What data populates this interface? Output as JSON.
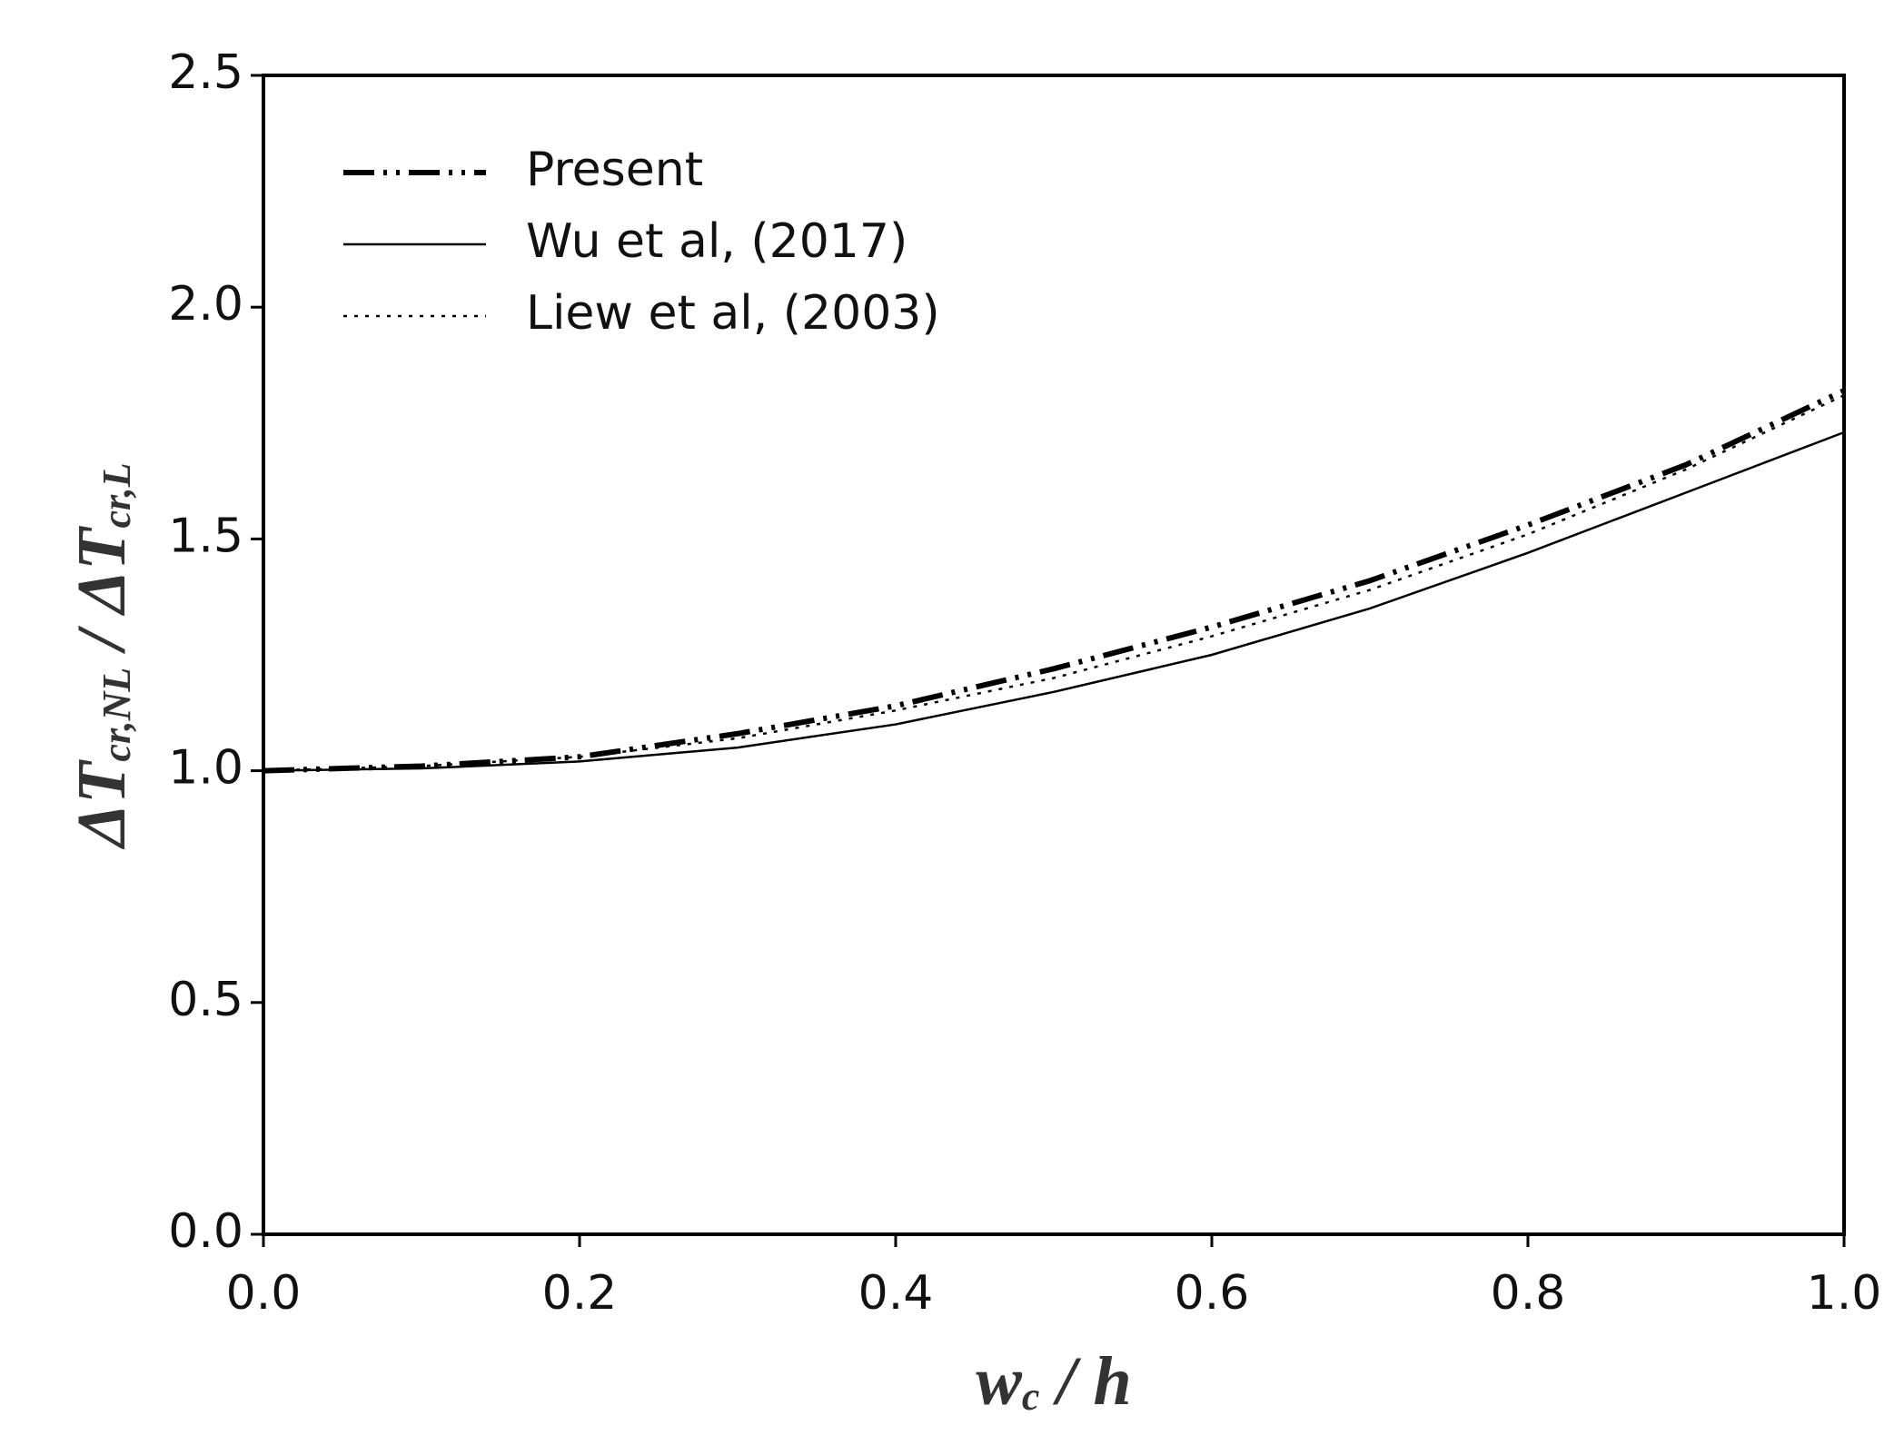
{
  "chart_data": {
    "type": "line",
    "x_label": [
      "w",
      "c",
      " / h"
    ],
    "y_label": [
      "ΔT",
      "cr,NL",
      " / ",
      "ΔT",
      "cr,L"
    ],
    "x": [
      0,
      0.1,
      0.2,
      0.3,
      0.4,
      0.5,
      0.6,
      0.7,
      0.8,
      0.9,
      1
    ],
    "series": [
      {
        "name": "Present",
        "color": "#000000",
        "linestyle": "dashdotdot",
        "values": [
          1.0,
          1.01,
          1.03,
          1.08,
          1.14,
          1.22,
          1.31,
          1.41,
          1.53,
          1.66,
          1.82
        ]
      },
      {
        "name": "Wu et al, (2017)",
        "color": "#000000",
        "linestyle": "solid",
        "values": [
          1.0,
          1.005,
          1.02,
          1.05,
          1.1,
          1.17,
          1.25,
          1.35,
          1.47,
          1.6,
          1.73
        ]
      },
      {
        "name": "Liew et al, (2003)",
        "color": "#000000",
        "linestyle": "dotted",
        "values": [
          1.0,
          1.01,
          1.03,
          1.07,
          1.13,
          1.2,
          1.29,
          1.39,
          1.51,
          1.65,
          1.81
        ]
      }
    ],
    "xlim": [
      0,
      1
    ],
    "ylim": [
      0,
      2.5
    ],
    "xticks": [
      {
        "value": 0,
        "label": "0.0"
      },
      0.2,
      0.4,
      0.6,
      0.8,
      {
        "value": 1,
        "label": "1.0"
      }
    ],
    "yticks": [
      {
        "value": 0,
        "label": "0.0"
      },
      0.5,
      {
        "value": 1,
        "label": "1.0"
      },
      1.5,
      {
        "value": 2,
        "label": "2.0"
      },
      2.5
    ],
    "legend": "upper left",
    "grid": false
  }
}
